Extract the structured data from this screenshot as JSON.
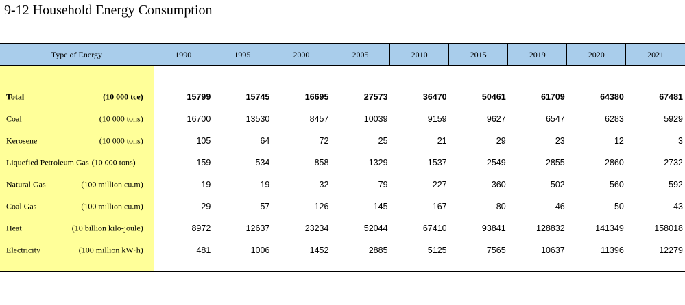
{
  "title": "9-12  Household Energy Consumption",
  "table": {
    "header_type": "Type of Energy",
    "years": [
      "1990",
      "1995",
      "2000",
      "2005",
      "2010",
      "2015",
      "2019",
      "2020",
      "2021"
    ],
    "rows": [
      {
        "name": "Total",
        "unit": "(10 000 tce)",
        "values": [
          "15799",
          "15745",
          "16695",
          "27573",
          "36470",
          "50461",
          "61709",
          "64380",
          "67481"
        ]
      },
      {
        "name": "Coal",
        "unit": "(10 000 tons)",
        "values": [
          "16700",
          "13530",
          "8457",
          "10039",
          "9159",
          "9627",
          "6547",
          "6283",
          "5929"
        ]
      },
      {
        "name": "Kerosene",
        "unit": "(10 000 tons)",
        "values": [
          "105",
          "64",
          "72",
          "25",
          "21",
          "29",
          "23",
          "12",
          "3"
        ]
      },
      {
        "name": "Liquefied Petroleum Gas",
        "unit": "(10 000 tons)",
        "values": [
          "159",
          "534",
          "858",
          "1329",
          "1537",
          "2549",
          "2855",
          "2860",
          "2732"
        ]
      },
      {
        "name": "Natural Gas",
        "unit": "(100 million cu.m)",
        "values": [
          "19",
          "19",
          "32",
          "79",
          "227",
          "360",
          "502",
          "560",
          "592"
        ]
      },
      {
        "name": "Coal Gas",
        "unit": "(100 million cu.m)",
        "values": [
          "29",
          "57",
          "126",
          "145",
          "167",
          "80",
          "46",
          "50",
          "43"
        ]
      },
      {
        "name": "Heat",
        "unit": "(10 billion kilo-joule)",
        "values": [
          "8972",
          "12637",
          "23234",
          "52044",
          "67410",
          "93841",
          "128832",
          "141349",
          "158018"
        ]
      },
      {
        "name": "Electricity",
        "unit": "(100 million kW·h)",
        "values": [
          "481",
          "1006",
          "1452",
          "2885",
          "5125",
          "7565",
          "10637",
          "11396",
          "12279"
        ]
      }
    ]
  }
}
